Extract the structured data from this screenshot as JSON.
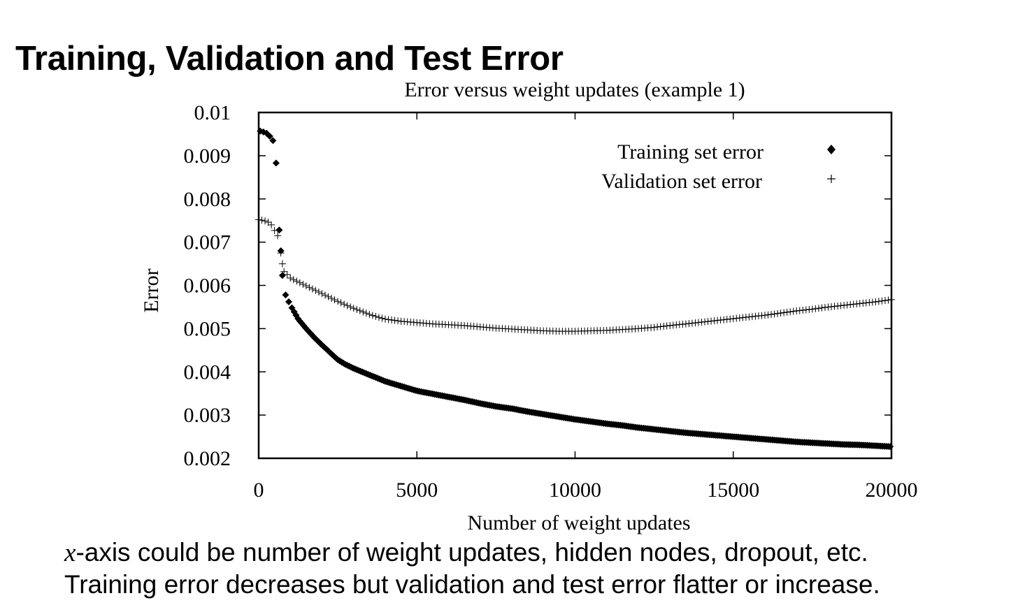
{
  "slide": {
    "title": "Training, Validation and Test Error",
    "caption_var": "x",
    "caption_line1_rest": "-axis could be number of weight updates, hidden nodes, dropout, etc.",
    "caption_line2": "Training error decreases but validation and test error flatter or increase."
  },
  "chart_data": {
    "type": "scatter",
    "title": "Error versus weight updates (example 1)",
    "xlabel": "Number of weight updates",
    "ylabel": "Error",
    "xlim": [
      0,
      20000
    ],
    "ylim": [
      0.002,
      0.01
    ],
    "xticks": [
      0,
      5000,
      10000,
      15000,
      20000
    ],
    "xtick_labels": [
      "0",
      "5000",
      "10000",
      "15000",
      "20000"
    ],
    "yticks": [
      0.002,
      0.003,
      0.004,
      0.005,
      0.006,
      0.007,
      0.008,
      0.009,
      0.01
    ],
    "ytick_labels": [
      "0.002",
      "0.003",
      "0.004",
      "0.005",
      "0.006",
      "0.007",
      "0.008",
      "0.009",
      "0.01"
    ],
    "grid": false,
    "legend_position": "top-right",
    "colors": {
      "marks": "#000000",
      "axes": "#000000"
    },
    "series": [
      {
        "name": "Training set error",
        "marker": "diamond",
        "points": [
          [
            50,
            0.00957
          ],
          [
            150,
            0.00955
          ],
          [
            250,
            0.00952
          ],
          [
            350,
            0.00945
          ],
          [
            450,
            0.00935
          ],
          [
            550,
            0.00883
          ],
          [
            650,
            0.00728
          ],
          [
            700,
            0.0068
          ],
          [
            750,
            0.00623
          ],
          [
            850,
            0.00578
          ],
          [
            950,
            0.00562
          ],
          [
            1050,
            0.00548
          ],
          [
            1150,
            0.00535
          ],
          [
            1250,
            0.00522
          ],
          [
            1500,
            0.005
          ],
          [
            1750,
            0.0048
          ],
          [
            2000,
            0.00462
          ],
          [
            2250,
            0.00445
          ],
          [
            2500,
            0.00428
          ],
          [
            2750,
            0.00417
          ],
          [
            3000,
            0.00408
          ],
          [
            3500,
            0.00393
          ],
          [
            4000,
            0.00378
          ],
          [
            4500,
            0.00367
          ],
          [
            5000,
            0.00356
          ],
          [
            5500,
            0.00349
          ],
          [
            6000,
            0.00342
          ],
          [
            6500,
            0.00335
          ],
          [
            7000,
            0.00327
          ],
          [
            7500,
            0.0032
          ],
          [
            8000,
            0.00315
          ],
          [
            8500,
            0.00308
          ],
          [
            9000,
            0.00302
          ],
          [
            9500,
            0.00296
          ],
          [
            10000,
            0.0029
          ],
          [
            10500,
            0.00285
          ],
          [
            11000,
            0.0028
          ],
          [
            11500,
            0.00276
          ],
          [
            12000,
            0.00271
          ],
          [
            12500,
            0.00267
          ],
          [
            13000,
            0.00263
          ],
          [
            13500,
            0.00259
          ],
          [
            14000,
            0.00256
          ],
          [
            14500,
            0.00253
          ],
          [
            15000,
            0.0025
          ],
          [
            15500,
            0.00247
          ],
          [
            16000,
            0.00244
          ],
          [
            16500,
            0.00241
          ],
          [
            17000,
            0.00238
          ],
          [
            17500,
            0.00236
          ],
          [
            18000,
            0.00234
          ],
          [
            18500,
            0.00232
          ],
          [
            19000,
            0.00231
          ],
          [
            19500,
            0.00229
          ],
          [
            20000,
            0.00227
          ]
        ]
      },
      {
        "name": "Validation set error",
        "marker": "plus",
        "points": [
          [
            0,
            0.00752
          ],
          [
            100,
            0.00751
          ],
          [
            200,
            0.00749
          ],
          [
            300,
            0.00746
          ],
          [
            400,
            0.0074
          ],
          [
            500,
            0.00727
          ],
          [
            600,
            0.00715
          ],
          [
            700,
            0.00675
          ],
          [
            750,
            0.0065
          ],
          [
            800,
            0.00632
          ],
          [
            900,
            0.00625
          ],
          [
            1000,
            0.00617
          ],
          [
            1250,
            0.00608
          ],
          [
            1500,
            0.00599
          ],
          [
            1750,
            0.0059
          ],
          [
            2000,
            0.00581
          ],
          [
            2250,
            0.00572
          ],
          [
            2500,
            0.00563
          ],
          [
            2750,
            0.00555
          ],
          [
            3000,
            0.00547
          ],
          [
            3250,
            0.0054
          ],
          [
            3500,
            0.00533
          ],
          [
            3750,
            0.00527
          ],
          [
            4000,
            0.00522
          ],
          [
            4500,
            0.00517
          ],
          [
            5000,
            0.00514
          ],
          [
            5500,
            0.00511
          ],
          [
            6000,
            0.00509
          ],
          [
            6500,
            0.00507
          ],
          [
            7000,
            0.00504
          ],
          [
            7500,
            0.00501
          ],
          [
            8000,
            0.00499
          ],
          [
            8500,
            0.00497
          ],
          [
            9000,
            0.00495
          ],
          [
            9500,
            0.00494
          ],
          [
            10000,
            0.00494
          ],
          [
            10500,
            0.00495
          ],
          [
            11000,
            0.00496
          ],
          [
            11500,
            0.00498
          ],
          [
            12000,
            0.005
          ],
          [
            12500,
            0.00503
          ],
          [
            13000,
            0.00507
          ],
          [
            13500,
            0.00511
          ],
          [
            14000,
            0.00515
          ],
          [
            14500,
            0.00519
          ],
          [
            15000,
            0.00523
          ],
          [
            15500,
            0.00527
          ],
          [
            16000,
            0.00531
          ],
          [
            16500,
            0.00536
          ],
          [
            17000,
            0.00541
          ],
          [
            17500,
            0.00545
          ],
          [
            18000,
            0.0055
          ],
          [
            18500,
            0.00554
          ],
          [
            19000,
            0.00558
          ],
          [
            19500,
            0.00562
          ],
          [
            20000,
            0.00567
          ]
        ]
      }
    ]
  }
}
